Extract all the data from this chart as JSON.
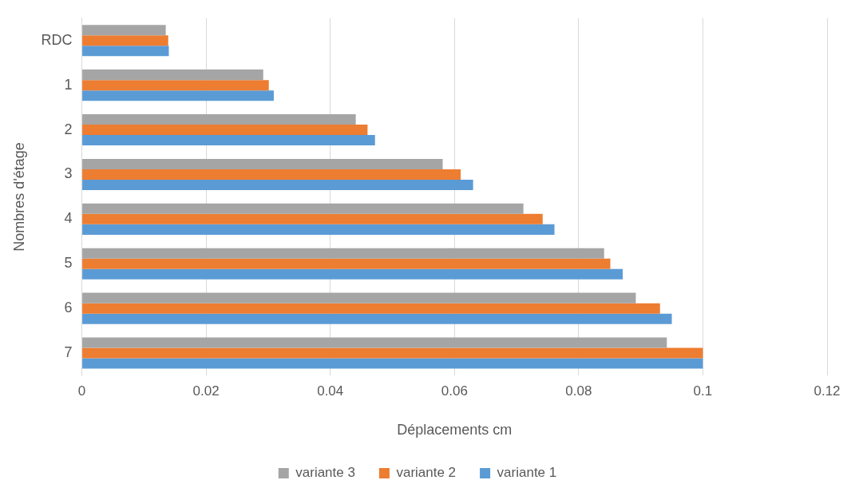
{
  "chart_data": {
    "type": "bar",
    "orientation": "horizontal",
    "xlabel": "Déplacements cm",
    "ylabel": "Nombres d'étage",
    "categories": [
      "RDC",
      "1",
      "2",
      "3",
      "4",
      "5",
      "6",
      "7"
    ],
    "series": [
      {
        "name": "variante 3",
        "color": "#a5a5a5",
        "values": [
          0.0135,
          0.0292,
          0.0441,
          0.0581,
          0.0711,
          0.0841,
          0.0892,
          0.0942
        ]
      },
      {
        "name": "variante 2",
        "color": "#ed7d31",
        "values": [
          0.0139,
          0.0301,
          0.046,
          0.061,
          0.0742,
          0.0851,
          0.0931,
          0.1
        ]
      },
      {
        "name": "variante 1",
        "color": "#5b9bd5",
        "values": [
          0.014,
          0.0309,
          0.0472,
          0.063,
          0.0761,
          0.0871,
          0.095,
          0.1
        ]
      }
    ],
    "xlim": [
      0,
      0.12
    ],
    "xticks": [
      0,
      0.02,
      0.04,
      0.06,
      0.08,
      0.1,
      0.12
    ],
    "grid": "x",
    "legend": "bottom"
  }
}
